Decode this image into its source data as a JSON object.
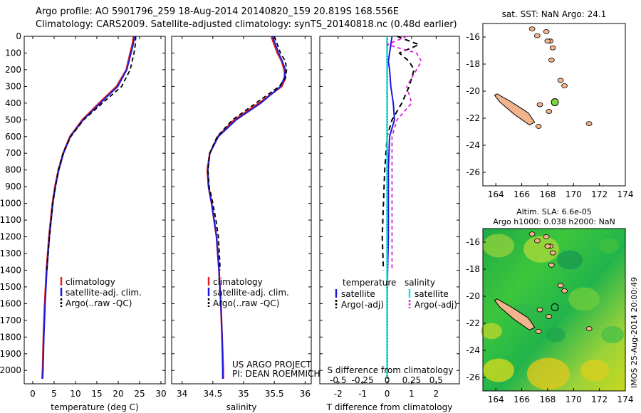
{
  "header": {
    "line1": "Argo profile: AO 5901796_259 18-Aug-2014 20140820_159 20.819S 168.556E",
    "line2": "Climatology: CARS2009. Satellite-adjusted climatology: synTS_20140818.nc (0.48d earlier)"
  },
  "depth_ticks": [
    "0",
    "100",
    "200",
    "300",
    "400",
    "500",
    "600",
    "700",
    "800",
    "900",
    "1000",
    "1100",
    "1200",
    "1300",
    "1400",
    "1500",
    "1600",
    "1700",
    "1800",
    "1900",
    "2000"
  ],
  "colors": {
    "climatology": "#e02020",
    "satellite": "#1a1adc",
    "argo": "#000000",
    "salinity_sat": "#22dddd",
    "salinity_argo": "#dd22dd",
    "land": "#f2b48c",
    "float": "#7fd63a"
  },
  "chart_data": [
    {
      "type": "line",
      "id": "temperature",
      "xlabel": "temperature (deg C)",
      "ylabel": "",
      "x_ticks": [
        "0",
        "5",
        "10",
        "15",
        "20",
        "25",
        "30"
      ],
      "xlim": [
        -2,
        31
      ],
      "ylim": [
        2080,
        0
      ],
      "legend": [
        "climatology",
        "satellite-adj. clim.",
        "Argo(..raw -QC)"
      ],
      "depth": [
        0,
        50,
        100,
        200,
        300,
        400,
        500,
        600,
        700,
        800,
        900,
        1000,
        1200,
        1400,
        1600,
        1800,
        2000,
        2050
      ],
      "series": [
        {
          "name": "climatology",
          "values": [
            23.6,
            23.3,
            22.8,
            21.9,
            19.6,
            15.5,
            11.6,
            8.7,
            7.1,
            6.0,
            5.2,
            4.6,
            3.8,
            3.2,
            2.8,
            2.5,
            2.3,
            2.2
          ]
        },
        {
          "name": "satellite-adj. clim.",
          "values": [
            23.8,
            23.5,
            23.0,
            22.0,
            19.9,
            15.8,
            11.8,
            8.8,
            7.2,
            6.1,
            5.3,
            4.7,
            3.9,
            3.3,
            2.9,
            2.6,
            2.4,
            2.3
          ]
        },
        {
          "name": "Argo(..raw -QC)",
          "values": [
            24.1,
            24.0,
            23.7,
            22.8,
            20.8,
            16.3,
            11.9,
            8.9,
            7.1,
            6.0,
            5.3,
            4.7,
            3.9,
            3.3
          ]
        }
      ]
    },
    {
      "type": "line",
      "id": "salinity",
      "xlabel": "salinity",
      "ylabel": "",
      "x_ticks": [
        "34",
        "34.5",
        "35",
        "35.5",
        "36"
      ],
      "xlim": [
        33.83,
        36.1
      ],
      "ylim": [
        2080,
        0
      ],
      "legend": [
        "climatology",
        "satellite-adj. clim.",
        "Argo(..raw -QC)"
      ],
      "annotation": [
        "US ARGO PROJECT",
        "PI: DEAN ROEMMICH"
      ],
      "depth": [
        0,
        50,
        100,
        150,
        200,
        250,
        300,
        400,
        500,
        600,
        700,
        800,
        900,
        1000,
        1100,
        1200,
        1400,
        1600,
        1800,
        2000,
        2050
      ],
      "series": [
        {
          "name": "climatology",
          "values": [
            35.45,
            35.5,
            35.55,
            35.62,
            35.66,
            35.68,
            35.62,
            35.25,
            34.85,
            34.58,
            34.45,
            34.41,
            34.43,
            34.48,
            34.52,
            34.56,
            34.6,
            34.63,
            34.65,
            34.67,
            34.67
          ]
        },
        {
          "name": "satellite-adj. clim.",
          "values": [
            35.47,
            35.52,
            35.57,
            35.63,
            35.68,
            35.66,
            35.6,
            35.28,
            34.88,
            34.59,
            34.45,
            34.42,
            34.43,
            34.48,
            34.52,
            34.56,
            34.6,
            34.63,
            34.65,
            34.66,
            34.66
          ]
        },
        {
          "name": "Argo(..raw -QC)",
          "values": [
            35.5,
            35.55,
            35.6,
            35.68,
            35.7,
            35.68,
            35.58,
            35.2,
            34.82,
            34.57,
            34.45,
            34.42,
            34.44,
            34.5,
            34.55,
            34.59,
            34.62
          ]
        }
      ]
    },
    {
      "type": "line",
      "id": "differences",
      "xlabel": "T difference from climatology",
      "xlabel2": "S difference from climatology",
      "x_ticks": [
        "-2",
        "-1",
        "0",
        "1",
        "2"
      ],
      "x2_ticks": [
        "-0.5",
        "-0.25",
        "0",
        "0.25",
        "0.5"
      ],
      "xlim": [
        -2.75,
        2.95
      ],
      "ylim": [
        2080,
        0
      ],
      "legend_headings": [
        "temperature",
        "salinity"
      ],
      "legend": [
        "satellite",
        "Argo(-adj)",
        "satellite",
        "Argo(-adj)"
      ],
      "depth": [
        0,
        50,
        100,
        150,
        200,
        300,
        400,
        500,
        600,
        800,
        1000,
        1200,
        1400,
        1600,
        1800,
        2000,
        2050
      ],
      "series": [
        {
          "name": "satellite",
          "values": [
            0.2,
            0.15,
            0.1,
            0.05,
            0.1,
            0.15,
            0.25,
            0.3,
            0.1,
            0.05,
            0.05,
            0.05,
            0.02,
            0.0,
            0.0,
            0.0,
            0.0
          ]
        },
        {
          "name": "Argo(-adj)",
          "values": [
            0.4,
            1.3,
            0.5,
            0.9,
            1.1,
            0.9,
            0.6,
            0.2,
            0.0,
            -0.1,
            -0.15,
            -0.2,
            -0.15
          ]
        },
        {
          "name": "satellite",
          "values": [
            0.0,
            0.0,
            0.0,
            0.0,
            0.0,
            0.0,
            0.0,
            0.0,
            0.0,
            0.0,
            0.0,
            0.0,
            0.0,
            0.0,
            0.0,
            0.0,
            0.0
          ]
        },
        {
          "name": "Argo(-adj)",
          "values": [
            0.2,
            0.0,
            0.3,
            0.35,
            0.3,
            0.2,
            0.25,
            0.1,
            0.05,
            0.05,
            0.05,
            0.05,
            0.05
          ]
        }
      ]
    }
  ],
  "maps": {
    "sst": {
      "title": "sat. SST: NaN Argo: 24.1",
      "x_ticks": [
        "164",
        "166",
        "168",
        "170",
        "172",
        "174"
      ],
      "y_ticks": [
        "-16",
        "-18",
        "-20",
        "-22",
        "-24",
        "-26"
      ],
      "lon_range": [
        163,
        174
      ],
      "lat_range": [
        -27,
        -15
      ],
      "float_lon": 168.556,
      "float_lat": -20.819
    },
    "sla": {
      "title": "Altim. SLA: 6.6e-05",
      "subtitle": "Argo h1000: 0.038 h2000: NaN",
      "x_ticks": [
        "164",
        "166",
        "168",
        "170",
        "172",
        "174"
      ],
      "y_ticks": [
        "-16",
        "-18",
        "-20",
        "-22",
        "-24",
        "-26"
      ],
      "lon_range": [
        163,
        174
      ],
      "lat_range": [
        -27,
        -15
      ],
      "float_lon": 168.556,
      "float_lat": -20.819
    }
  },
  "credit": "IMOS 25-Aug-2014 20:00:49"
}
